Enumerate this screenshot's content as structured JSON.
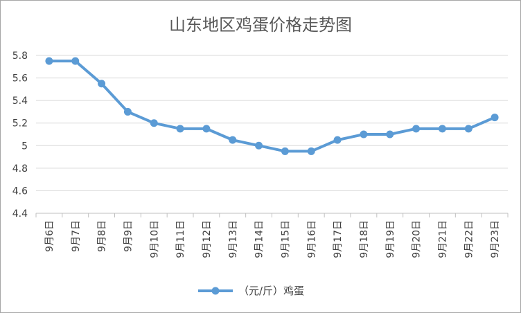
{
  "chart_data": {
    "type": "line",
    "title": "山东地区鸡蛋价格走势图",
    "xlabel": "",
    "ylabel": "",
    "categories": [
      "9月6日",
      "9月7日",
      "9月8日",
      "9月9日",
      "9月10日",
      "9月11日",
      "9月12日",
      "9月13日",
      "9月14日",
      "9月15日",
      "9月16日",
      "9月17日",
      "9月18日",
      "9月19日",
      "9月20日",
      "9月21日",
      "9月22日",
      "9月23日"
    ],
    "series": [
      {
        "name": "（元/斤）鸡蛋",
        "values": [
          5.75,
          5.75,
          5.55,
          5.3,
          5.2,
          5.15,
          5.15,
          5.05,
          5.0,
          4.95,
          4.95,
          5.05,
          5.1,
          5.1,
          5.15,
          5.15,
          5.15,
          5.25
        ]
      }
    ],
    "yticks": [
      "4.4",
      "4.6",
      "4.8",
      "5",
      "5.2",
      "5.4",
      "5.6",
      "5.8"
    ],
    "ylim": [
      4.4,
      5.8
    ],
    "grid": true,
    "legend": "bottom",
    "colors": {
      "series": "#5b9bd5",
      "grid": "#d9d9d9",
      "axis": "#bfbfbf",
      "frame": "#a6a6a6"
    }
  }
}
